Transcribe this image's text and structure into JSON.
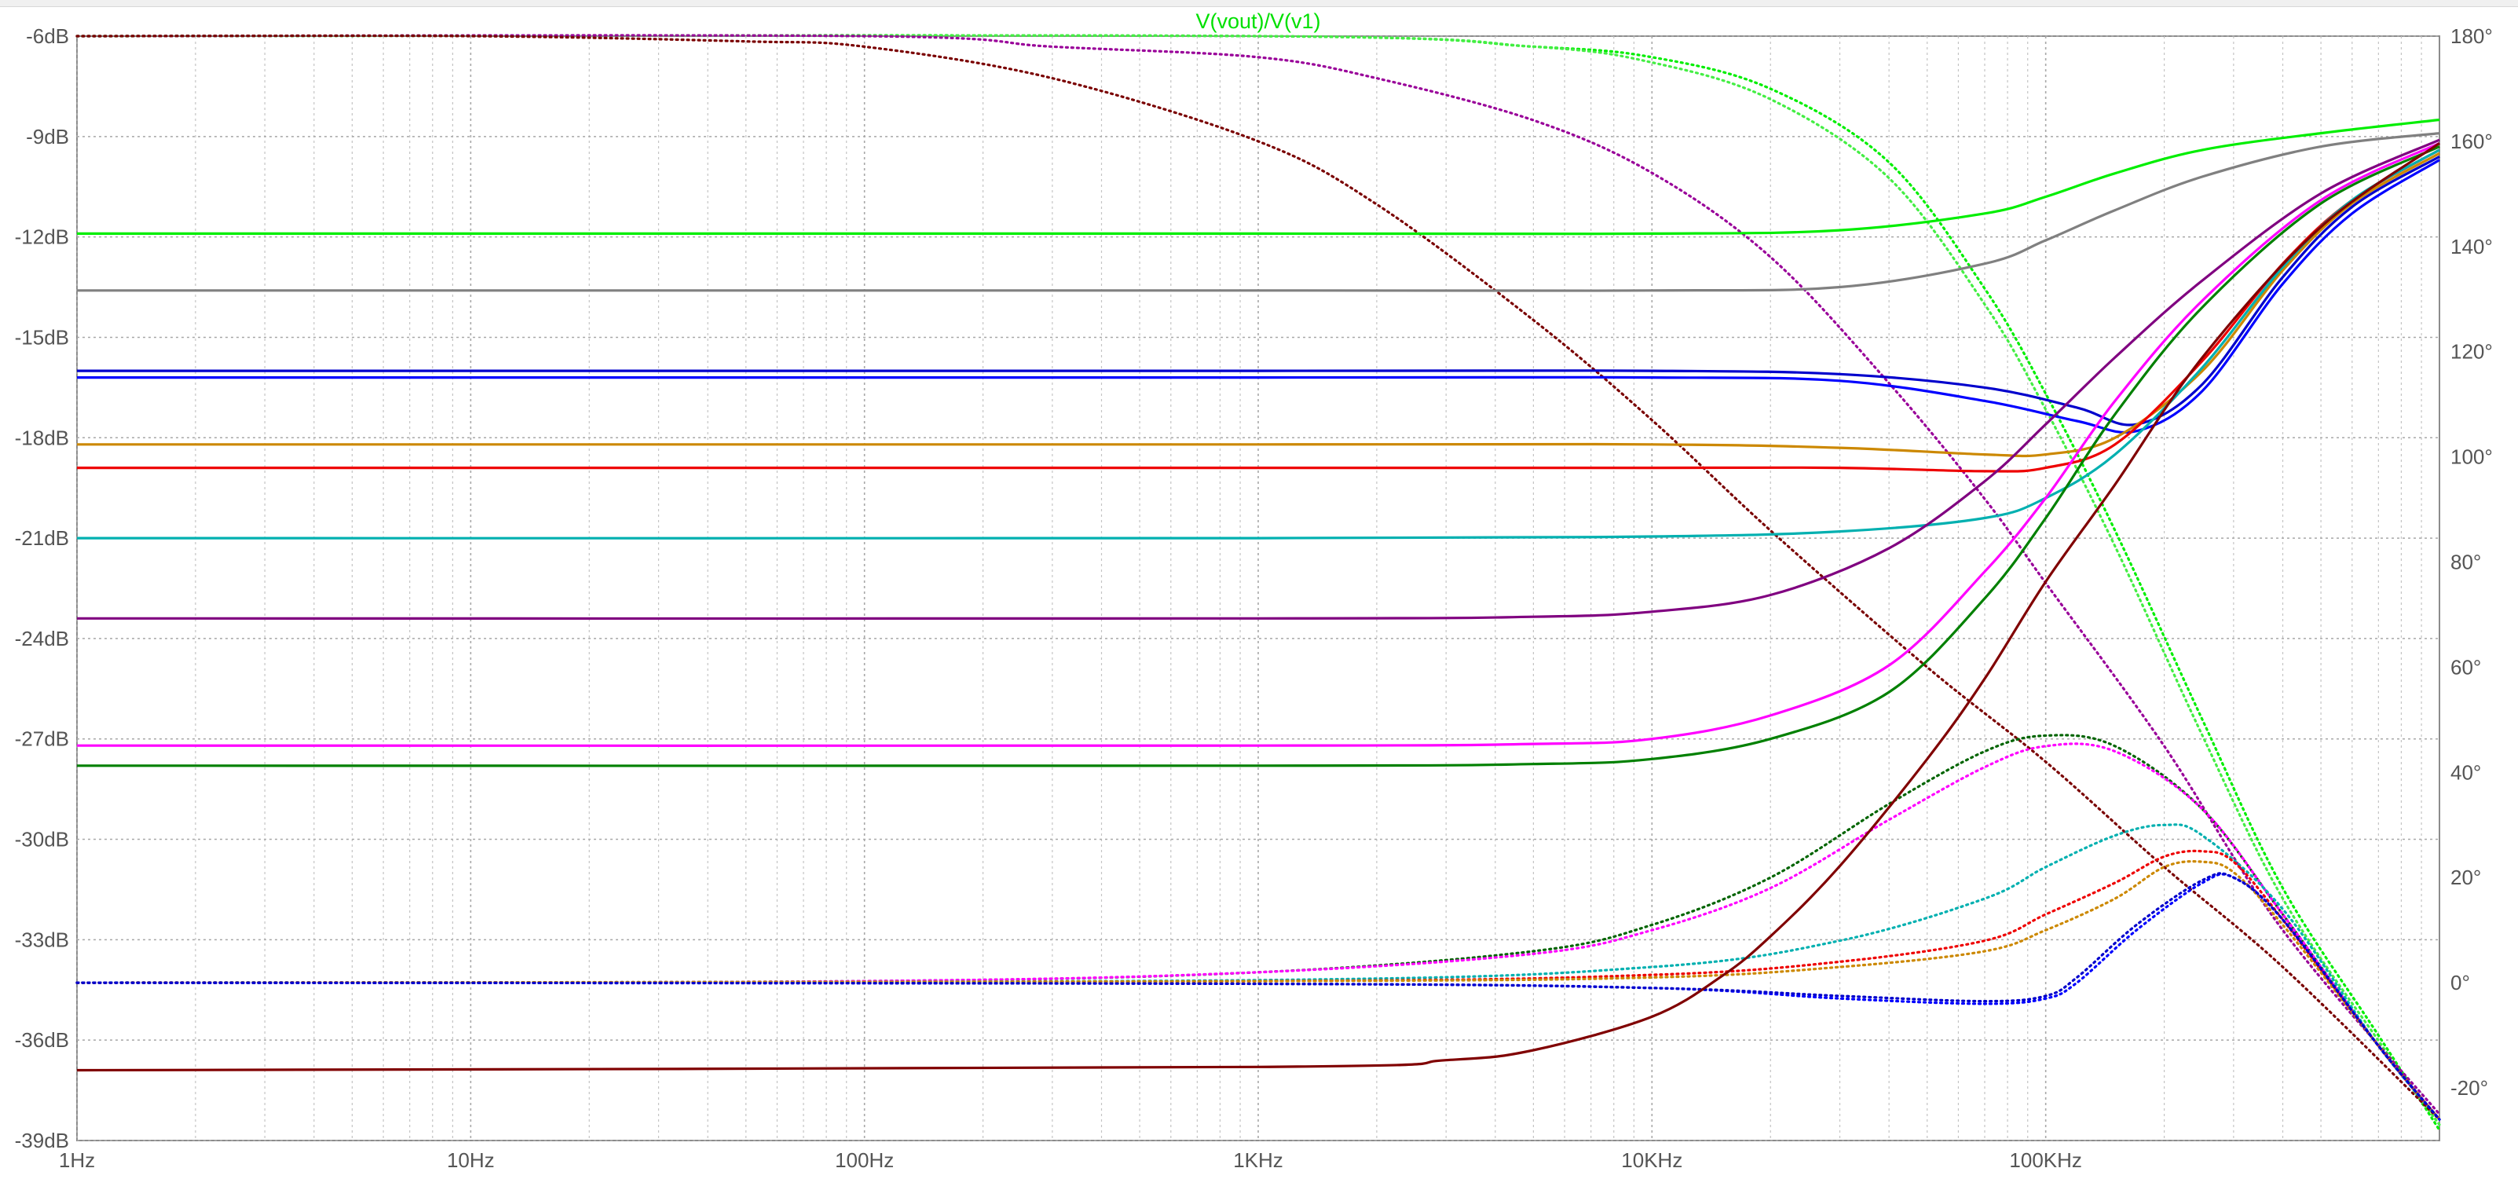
{
  "chart_data": {
    "type": "line",
    "title": "V(vout)/V(v1)",
    "title_color": "#00e000",
    "x_scale": "log",
    "x_range": [
      1,
      1000000
    ],
    "x_ticks": [
      {
        "value": 1,
        "label": "1Hz"
      },
      {
        "value": 10,
        "label": "10Hz"
      },
      {
        "value": 100,
        "label": "100Hz"
      },
      {
        "value": 1000,
        "label": "1KHz"
      },
      {
        "value": 10000,
        "label": "10KHz"
      },
      {
        "value": 100000,
        "label": "100KHz"
      }
    ],
    "y_left_range": [
      -39,
      -6
    ],
    "y_left_ticks": [
      {
        "value": -6,
        "label": "-6dB"
      },
      {
        "value": -9,
        "label": "-9dB"
      },
      {
        "value": -12,
        "label": "-12dB"
      },
      {
        "value": -15,
        "label": "-15dB"
      },
      {
        "value": -18,
        "label": "-18dB"
      },
      {
        "value": -21,
        "label": "-21dB"
      },
      {
        "value": -24,
        "label": "-24dB"
      },
      {
        "value": -27,
        "label": "-27dB"
      },
      {
        "value": -30,
        "label": "-30dB"
      },
      {
        "value": -33,
        "label": "-33dB"
      },
      {
        "value": -36,
        "label": "-36dB"
      },
      {
        "value": -39,
        "label": "-39dB"
      }
    ],
    "y_right_range": [
      -30,
      180
    ],
    "y_right_ticks": [
      {
        "value": 180,
        "label": "180°"
      },
      {
        "value": 160,
        "label": "160°"
      },
      {
        "value": 140,
        "label": "140°"
      },
      {
        "value": 120,
        "label": "120°"
      },
      {
        "value": 100,
        "label": "100°"
      },
      {
        "value": 80,
        "label": "80°"
      },
      {
        "value": 60,
        "label": "60°"
      },
      {
        "value": 40,
        "label": "40°"
      },
      {
        "value": 20,
        "label": "20°"
      },
      {
        "value": 0,
        "label": "0°"
      },
      {
        "value": -20,
        "label": "-20°"
      },
      {
        "value": -30,
        "label": ""
      }
    ],
    "grid": true,
    "grid_style": "dotted",
    "magnitude_series": [
      {
        "color": "#00ee00",
        "x": [
          1,
          1000,
          10000,
          30000,
          70000,
          100000,
          150000,
          250000,
          500000,
          1000000
        ],
        "y": [
          -11.9,
          -11.9,
          -11.9,
          -11.8,
          -11.3,
          -10.8,
          -10.1,
          -9.4,
          -8.9,
          -8.5
        ]
      },
      {
        "color": "#808080",
        "x": [
          1,
          1000,
          10000,
          30000,
          70000,
          100000,
          150000,
          250000,
          500000,
          1000000
        ],
        "y": [
          -13.6,
          -13.6,
          -13.6,
          -13.5,
          -12.8,
          -12.1,
          -11.2,
          -10.2,
          -9.3,
          -8.9
        ]
      },
      {
        "color": "#0000ff",
        "x": [
          1,
          1000,
          10000,
          30000,
          70000,
          120000,
          170000,
          250000,
          400000,
          600000,
          1000000
        ],
        "y": [
          -16.2,
          -16.2,
          -16.2,
          -16.3,
          -16.9,
          -17.5,
          -17.8,
          -16.6,
          -13.4,
          -11.3,
          -9.7
        ]
      },
      {
        "color": "#0000cc",
        "x": [
          1,
          1000,
          10000,
          30000,
          70000,
          120000,
          170000,
          250000,
          400000,
          600000,
          1000000
        ],
        "y": [
          -16.0,
          -16.0,
          -16.0,
          -16.1,
          -16.5,
          -17.1,
          -17.6,
          -16.4,
          -13.2,
          -11.1,
          -9.6
        ]
      },
      {
        "color": "#cc8800",
        "x": [
          1,
          1000,
          10000,
          30000,
          70000,
          100000,
          150000,
          250000,
          400000,
          600000,
          1000000
        ],
        "y": [
          -18.2,
          -18.2,
          -18.2,
          -18.3,
          -18.5,
          -18.5,
          -18.0,
          -16.0,
          -13.0,
          -11.0,
          -9.5
        ]
      },
      {
        "color": "#ee0000",
        "x": [
          1,
          1000,
          10000,
          30000,
          70000,
          100000,
          150000,
          250000,
          400000,
          600000,
          1000000
        ],
        "y": [
          -18.9,
          -18.9,
          -18.9,
          -18.9,
          -19.0,
          -18.9,
          -18.2,
          -15.7,
          -12.8,
          -10.9,
          -9.4
        ]
      },
      {
        "color": "#00b0b0",
        "x": [
          1,
          1000,
          10000,
          30000,
          70000,
          100000,
          150000,
          250000,
          400000,
          600000,
          1000000
        ],
        "y": [
          -21.0,
          -21.0,
          -20.95,
          -20.8,
          -20.4,
          -19.8,
          -18.5,
          -15.9,
          -12.9,
          -10.9,
          -9.4
        ]
      },
      {
        "color": "#800080",
        "x": [
          1,
          1000,
          5000,
          10000,
          20000,
          40000,
          70000,
          100000,
          150000,
          250000,
          500000,
          1000000
        ],
        "y": [
          -23.4,
          -23.4,
          -23.35,
          -23.2,
          -22.7,
          -21.3,
          -19.3,
          -17.6,
          -15.6,
          -13.3,
          -10.7,
          -9.1
        ]
      },
      {
        "color": "#ff00ff",
        "x": [
          1,
          1000,
          5000,
          10000,
          20000,
          40000,
          70000,
          100000,
          150000,
          250000,
          500000,
          1000000
        ],
        "y": [
          -27.2,
          -27.2,
          -27.15,
          -27.0,
          -26.3,
          -24.8,
          -22.0,
          -19.8,
          -16.9,
          -13.9,
          -10.9,
          -9.2
        ]
      },
      {
        "color": "#008000",
        "x": [
          1,
          1000,
          5000,
          10000,
          20000,
          40000,
          70000,
          100000,
          150000,
          250000,
          500000,
          1000000
        ],
        "y": [
          -27.8,
          -27.8,
          -27.75,
          -27.6,
          -27.0,
          -25.6,
          -22.8,
          -20.4,
          -17.3,
          -14.1,
          -11.0,
          -9.3
        ]
      },
      {
        "color": "#800000",
        "x": [
          1,
          1000,
          3000,
          5000,
          10000,
          15000,
          20000,
          30000,
          50000,
          70000,
          100000,
          150000,
          250000,
          500000,
          1000000
        ],
        "y": [
          -36.9,
          -36.8,
          -36.6,
          -36.3,
          -35.3,
          -34.1,
          -32.9,
          -30.8,
          -27.6,
          -25.2,
          -22.3,
          -19.4,
          -15.6,
          -11.7,
          -9.2
        ]
      }
    ],
    "phase_series": [
      {
        "color": "#00ee00",
        "x": [
          1,
          1000,
          5000,
          10000,
          20000,
          40000,
          70000,
          100000,
          150000,
          250000,
          400000,
          700000,
          1000000
        ],
        "y": [
          180,
          180,
          178,
          176,
          170,
          156,
          132,
          112,
          86,
          50,
          18,
          -10,
          -28
        ]
      },
      {
        "color": "#44ee44",
        "x": [
          1,
          1000,
          5000,
          10000,
          20000,
          40000,
          70000,
          100000,
          150000,
          250000,
          400000,
          700000,
          1000000
        ],
        "y": [
          180,
          180,
          178,
          175,
          168,
          153,
          129,
          109,
          83,
          47,
          16,
          -11,
          -27
        ]
      },
      {
        "color": "#990099",
        "x": [
          1,
          100,
          300,
          1000,
          2000,
          5000,
          10000,
          20000,
          40000,
          70000,
          100000,
          200000,
          400000,
          1000000
        ],
        "y": [
          180,
          180,
          178,
          176,
          172,
          164,
          154,
          138,
          114,
          92,
          76,
          45,
          10,
          -25
        ]
      },
      {
        "color": "#7a0000",
        "x": [
          1,
          10,
          50,
          100,
          300,
          1000,
          2000,
          5000,
          10000,
          20000,
          50000,
          100000,
          200000,
          400000,
          1000000
        ],
        "y": [
          180,
          180,
          179,
          178,
          172,
          160,
          148,
          126,
          107,
          86,
          60,
          42,
          22,
          3,
          -26
        ]
      },
      {
        "color": "#006400",
        "x": [
          1,
          100,
          1000,
          5000,
          10000,
          20000,
          40000,
          70000,
          100000,
          150000,
          250000,
          400000,
          700000,
          1000000
        ],
        "y": [
          0,
          0.3,
          2,
          6,
          11,
          20,
          34,
          44,
          47,
          45,
          33,
          13,
          -12,
          -26
        ]
      },
      {
        "color": "#ff00ff",
        "x": [
          1,
          100,
          1000,
          5000,
          10000,
          20000,
          40000,
          70000,
          100000,
          150000,
          250000,
          400000,
          700000,
          1000000
        ],
        "y": [
          0,
          0.3,
          2,
          5.5,
          10,
          18,
          31,
          41,
          45,
          44,
          33,
          13,
          -12,
          -26
        ]
      },
      {
        "color": "#00b0b0",
        "x": [
          1,
          1000,
          10000,
          30000,
          70000,
          100000,
          150000,
          200000,
          250000,
          400000,
          700000,
          1000000
        ],
        "y": [
          0,
          0.5,
          3,
          8,
          16,
          22,
          28,
          30,
          28,
          14,
          -12,
          -26
        ]
      },
      {
        "color": "#ee0000",
        "x": [
          1,
          1000,
          10000,
          30000,
          70000,
          100000,
          150000,
          200000,
          250000,
          300000,
          400000,
          700000,
          1000000
        ],
        "y": [
          0,
          0.3,
          1.5,
          4,
          8,
          13,
          19,
          24,
          25,
          23,
          12,
          -12,
          -26
        ]
      },
      {
        "color": "#cc8800",
        "x": [
          1,
          1000,
          10000,
          30000,
          70000,
          100000,
          150000,
          200000,
          250000,
          300000,
          400000,
          700000,
          1000000
        ],
        "y": [
          0,
          0.3,
          1,
          3,
          6,
          10,
          16,
          22,
          23,
          21,
          11,
          -12,
          -26
        ]
      },
      {
        "color": "#0000ff",
        "x": [
          1,
          1000,
          10000,
          30000,
          70000,
          100000,
          120000,
          170000,
          250000,
          300000,
          400000,
          700000,
          1000000
        ],
        "y": [
          0,
          -0.2,
          -1,
          -3,
          -4,
          -3,
          0,
          10,
          19,
          20,
          12,
          -12,
          -26
        ]
      },
      {
        "color": "#0000cc",
        "x": [
          1,
          1000,
          10000,
          30000,
          70000,
          100000,
          120000,
          170000,
          250000,
          300000,
          400000,
          700000,
          1000000
        ],
        "y": [
          0,
          -0.2,
          -1,
          -2.5,
          -3.5,
          -2.5,
          1,
          11,
          19.5,
          20,
          12,
          -12,
          -26
        ]
      }
    ]
  }
}
